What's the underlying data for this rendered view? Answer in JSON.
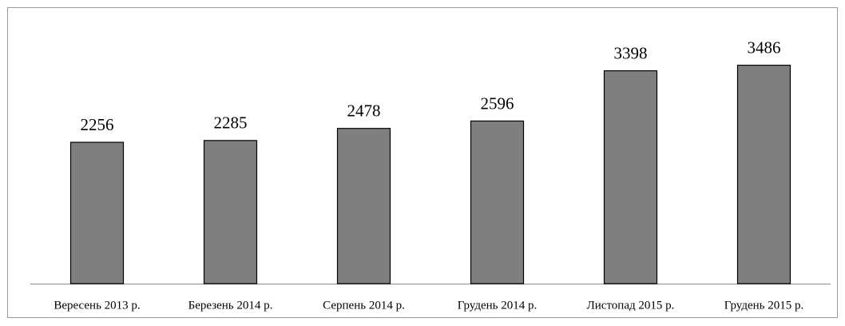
{
  "chart_data": {
    "type": "bar",
    "categories": [
      "Вересень 2013 р.",
      "Березень 2014 р.",
      "Серпень 2014 р.",
      "Грудень 2014 р.",
      "Листопад 2015 р.",
      "Грудень 2015 р."
    ],
    "values": [
      2256,
      2285,
      2478,
      2596,
      3398,
      3486
    ],
    "color": "#7f7f7f",
    "ylim": [
      0,
      4400
    ]
  }
}
